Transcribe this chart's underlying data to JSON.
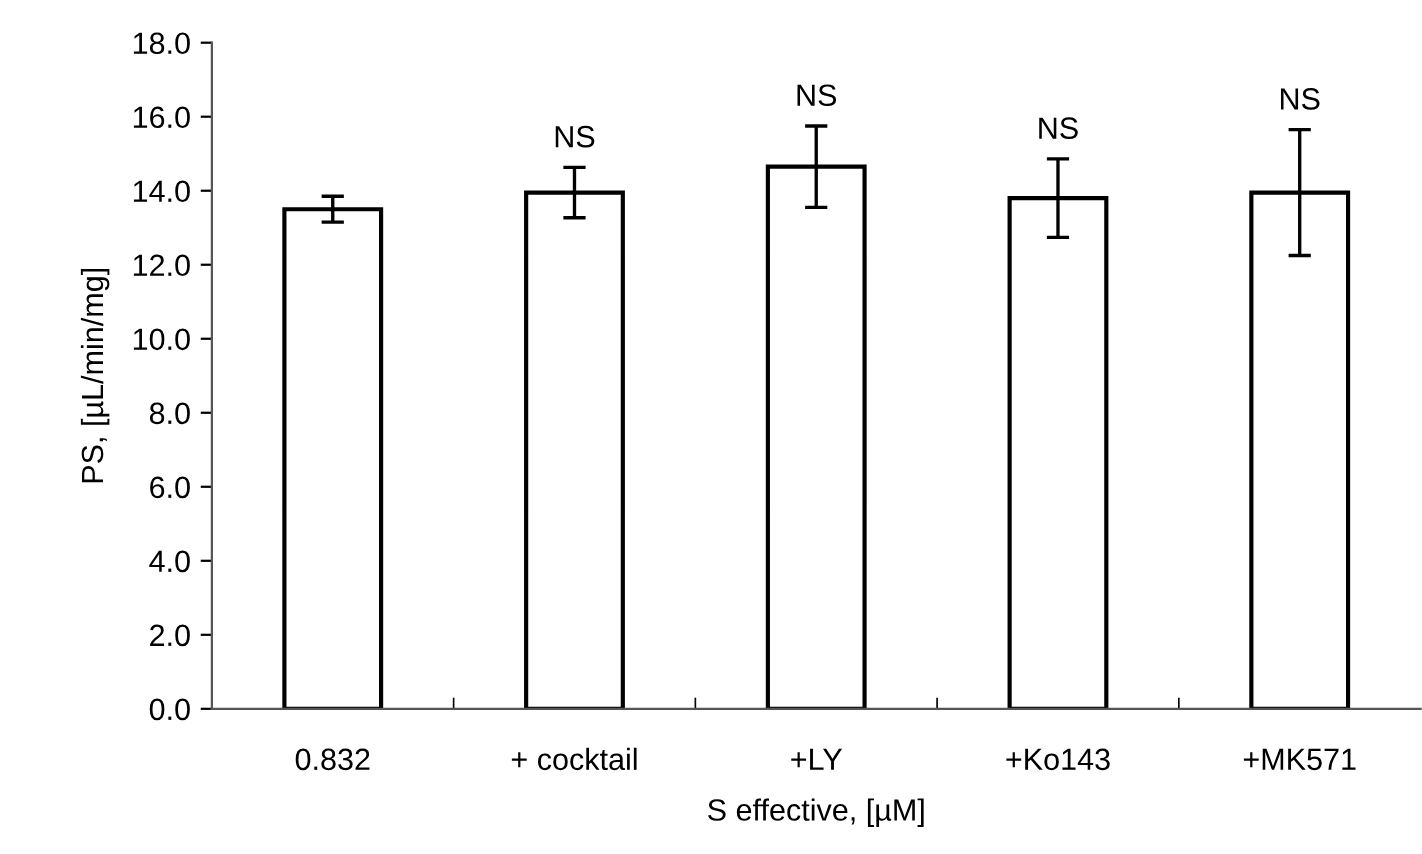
{
  "chart_data": {
    "type": "bar",
    "xlabel": "S effective, [µM]",
    "ylabel": "PS, [µL/min/mg]",
    "categories": [
      "0.832",
      "+ cocktail",
      "+LY",
      "+Ko143",
      "+MK571"
    ],
    "values": [
      13.5,
      13.95,
      14.65,
      13.8,
      13.95
    ],
    "errors": [
      0.35,
      0.68,
      1.1,
      1.06,
      1.7
    ],
    "color": "#ffffff",
    "ylim": [
      0,
      18
    ],
    "yticks": [
      {
        "value": 0,
        "label": "0.0"
      },
      {
        "value": 2,
        "label": "2.0"
      },
      {
        "value": 4,
        "label": "4.0"
      },
      {
        "value": 6,
        "label": "6.0"
      },
      {
        "value": 8,
        "label": "8.0"
      },
      {
        "value": 10,
        "label": "10.0"
      },
      {
        "value": 12,
        "label": "12.0"
      },
      {
        "value": 14,
        "label": "14.0"
      },
      {
        "value": 16,
        "label": "16.0"
      },
      {
        "value": 18,
        "label": "18.0"
      }
    ],
    "grid": false,
    "value_labels": [
      null,
      "NS",
      "NS",
      "NS",
      "NS"
    ]
  }
}
